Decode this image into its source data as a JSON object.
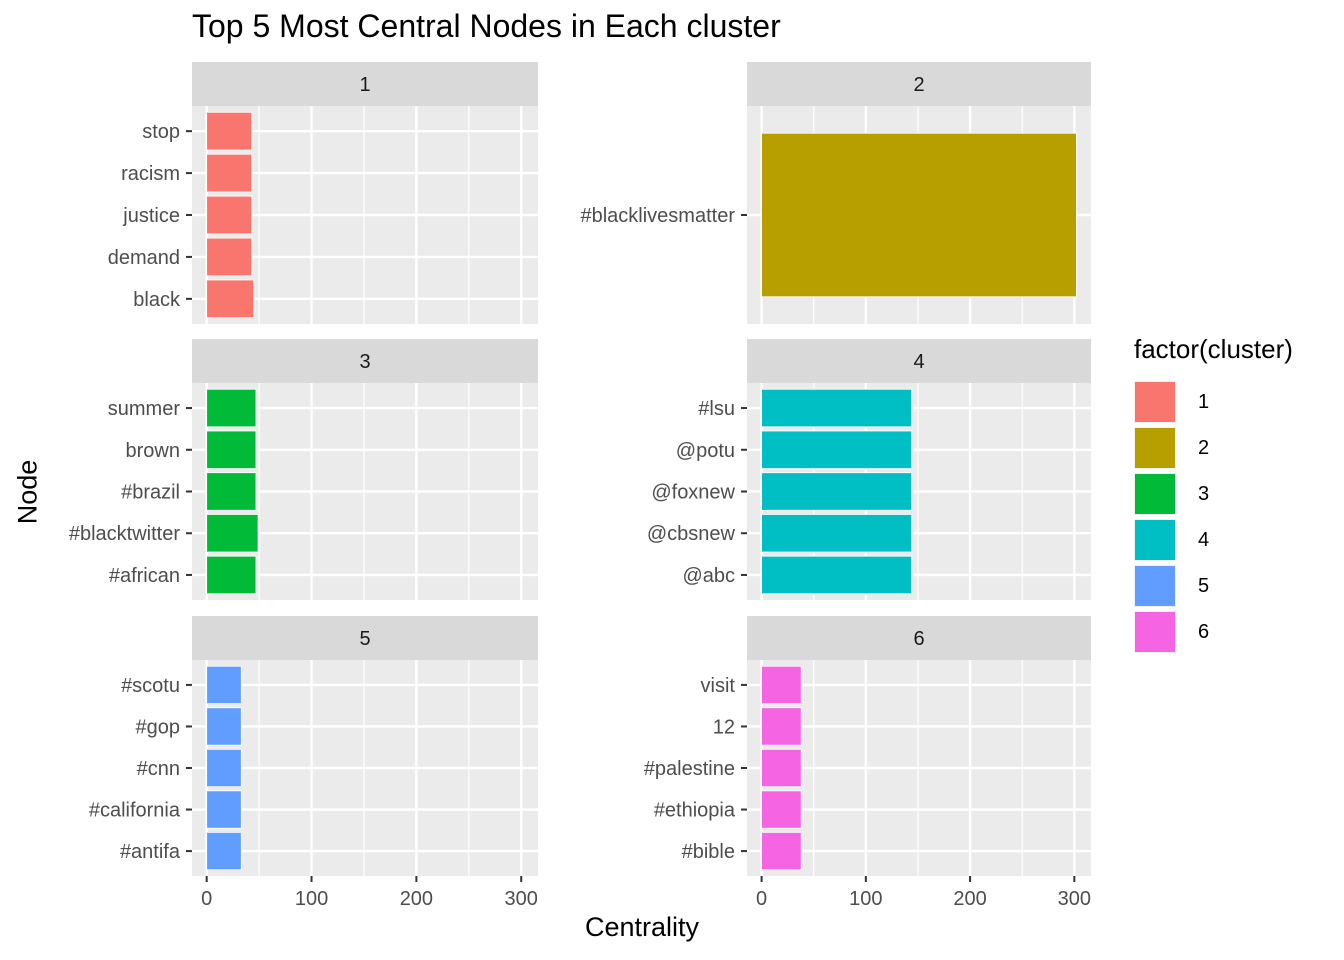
{
  "chart_data": {
    "type": "bar",
    "orientation": "horizontal",
    "title": "Top 5 Most Central Nodes in Each cluster",
    "xlabel": "Centrality",
    "ylabel": "Node",
    "xlim": [
      -14,
      316
    ],
    "xticks": [
      0,
      100,
      200,
      300
    ],
    "grid": true,
    "legend": {
      "title": "factor(cluster)",
      "placement": "right",
      "entries": [
        "1",
        "2",
        "3",
        "4",
        "5",
        "6"
      ]
    },
    "colors": [
      "#F8766D",
      "#B79F00",
      "#00BA38",
      "#00BFC4",
      "#619CFF",
      "#F564E3"
    ],
    "panels": [
      {
        "label": "1",
        "categories": [
          "stop",
          "racism",
          "justice",
          "demand",
          "black"
        ],
        "values": [
          43,
          43,
          43,
          43,
          45
        ]
      },
      {
        "label": "2",
        "categories": [
          "#blacklivesmatter"
        ],
        "values": [
          302
        ]
      },
      {
        "label": "3",
        "categories": [
          "summer",
          "brown",
          "#brazil",
          "#blacktwitter",
          "#african"
        ],
        "values": [
          47,
          47,
          47,
          49,
          47
        ]
      },
      {
        "label": "4",
        "categories": [
          "#lsu",
          "@potu",
          "@foxnew",
          "@cbsnew",
          "@abc"
        ],
        "values": [
          144,
          144,
          144,
          144,
          144
        ]
      },
      {
        "label": "5",
        "categories": [
          "#scotu",
          "#gop",
          "#cnn",
          "#california",
          "#antifa"
        ],
        "values": [
          33,
          33,
          33,
          33,
          33
        ]
      },
      {
        "label": "6",
        "categories": [
          "visit",
          "12",
          "#palestine",
          "#ethiopia",
          "#bible"
        ],
        "values": [
          38,
          38,
          38,
          38,
          38
        ]
      }
    ]
  }
}
